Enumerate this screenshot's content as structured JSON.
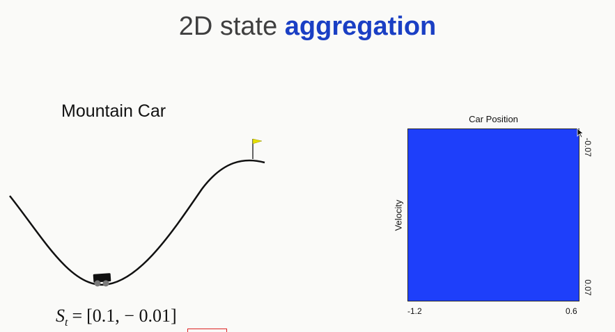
{
  "title": {
    "prefix": "2D state ",
    "emphasis": "aggregation"
  },
  "environment": {
    "label": "Mountain Car"
  },
  "state": {
    "symbol": "S",
    "subscript": "t",
    "equals": "=",
    "value": "[0.1, − 0.01]"
  },
  "grid": {
    "x_label": "Car Position",
    "y_label": "Velocity",
    "x_min": "-1.2",
    "x_max": "0.6",
    "v_top": "-0.07",
    "v_bottom": "0.07",
    "fill_color": "#1e3ffa"
  },
  "colors": {
    "title_emphasis": "#1a3fc4",
    "flag": "#e6e000"
  }
}
